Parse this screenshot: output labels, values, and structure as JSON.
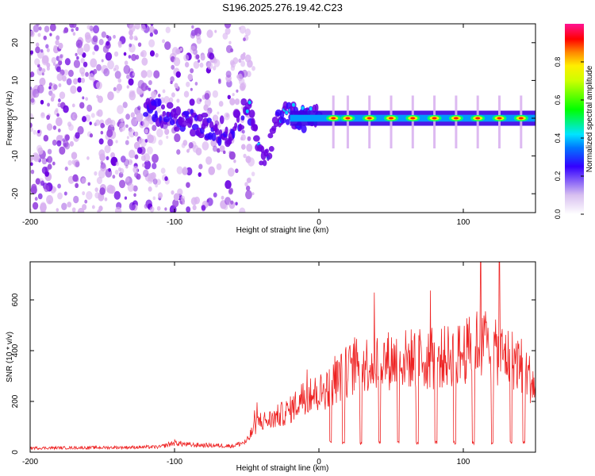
{
  "title": "S196.2025.276.19.42.C23",
  "colors": {
    "snr_line": "#ee2222",
    "spectro_light": "#d9b3f0",
    "spectro_mid": "#9b4ce0",
    "spectro_dark": "#6a00e0"
  },
  "chart_data": [
    {
      "type": "heatmap",
      "name": "spectrogram",
      "xlabel": "Height of straight line (km)",
      "ylabel": "Frequency (Hz)",
      "xlim": [
        -200,
        150
      ],
      "ylim": [
        -25,
        25
      ],
      "xticks": [
        -200,
        -100,
        0,
        100
      ],
      "yticks": [
        -20,
        -10,
        0,
        10,
        20
      ],
      "colorbar": {
        "label": "Normalized spectral amplitude",
        "range": [
          0.0,
          1.0
        ],
        "ticks": [
          0.0,
          0.2,
          0.4,
          0.6,
          0.8
        ],
        "tick_labels": [
          "0.0",
          "0.2",
          "0.4",
          "0.6",
          "0.8"
        ]
      },
      "features": {
        "noise_region_km": [
          -200,
          -60
        ],
        "signal_track_hz": [
          [
            -120,
            3
          ],
          [
            -100,
            0
          ],
          [
            -80,
            -2
          ],
          [
            -60,
            -4
          ],
          [
            -50,
            3
          ],
          [
            -45,
            0
          ],
          [
            -42,
            -7
          ],
          [
            -38,
            -12
          ],
          [
            -30,
            -2
          ],
          [
            -20,
            2
          ],
          [
            -15,
            0
          ],
          [
            0,
            0
          ],
          [
            50,
            0
          ],
          [
            100,
            0
          ],
          [
            150,
            0
          ]
        ],
        "bright_peaks_km": [
          10,
          20,
          35,
          50,
          65,
          80,
          95,
          110,
          125,
          140
        ]
      }
    },
    {
      "type": "line",
      "name": "snr",
      "xlabel": "Height of straight line (km)",
      "ylabel": "SNR (10 * v/v)",
      "xlim": [
        -200,
        150
      ],
      "ylim": [
        0,
        750
      ],
      "xticks": [
        -200,
        -100,
        0,
        100
      ],
      "yticks": [
        0,
        200,
        400,
        600
      ],
      "envelope": [
        [
          -200,
          20
        ],
        [
          -150,
          22
        ],
        [
          -110,
          25
        ],
        [
          -100,
          45
        ],
        [
          -90,
          35
        ],
        [
          -60,
          30
        ],
        [
          -50,
          50
        ],
        [
          -42,
          150
        ],
        [
          -35,
          150
        ],
        [
          -20,
          200
        ],
        [
          -10,
          270
        ],
        [
          0,
          280
        ],
        [
          10,
          330
        ],
        [
          20,
          390
        ],
        [
          30,
          420
        ],
        [
          40,
          430
        ],
        [
          50,
          440
        ],
        [
          60,
          445
        ],
        [
          70,
          450
        ],
        [
          80,
          440
        ],
        [
          90,
          460
        ],
        [
          100,
          470
        ],
        [
          110,
          520
        ],
        [
          120,
          480
        ],
        [
          130,
          460
        ],
        [
          140,
          420
        ],
        [
          150,
          310
        ]
      ],
      "dips_km": [
        8,
        17,
        29,
        42,
        55,
        68,
        81,
        94,
        107,
        120,
        133,
        142
      ],
      "dip_value": 30,
      "peak_value": 750
    }
  ]
}
